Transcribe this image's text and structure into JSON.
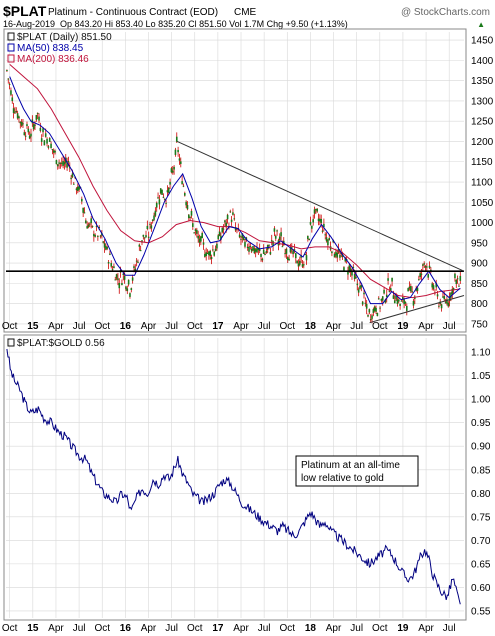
{
  "header": {
    "symbol": "$PLAT",
    "description": "Platinum - Continuous Contract (EOD)",
    "exchange": "CME",
    "date": "16-Aug-2019",
    "quote": "Op 843.20  Hi 853.40  Lo 835.20  Cl 851.50  Vol 1.7M  Chg +9.50 (+1.13%)",
    "quote_arrow": "▲",
    "brand": "@ StockCharts.com"
  },
  "colors": {
    "candle_body": "#1a7a1a",
    "candle_wick": "#cc0000",
    "ma50": "#0000aa",
    "ma200": "#c0143c",
    "ratio": "#000080",
    "trendline": "#333333",
    "support": "#000000",
    "grid": "#d8d8d8"
  },
  "chart_data": [
    {
      "type": "candlestick",
      "legend": [
        {
          "name": "$PLAT (Daily) 851.50",
          "color": "#111111"
        },
        {
          "name": "MA(50) 838.45",
          "color": "#0000aa"
        },
        {
          "name": "MA(200) 836.46",
          "color": "#c0143c"
        }
      ],
      "ylim": [
        735,
        1470
      ],
      "yticks": [
        750,
        800,
        850,
        900,
        950,
        1000,
        1050,
        1100,
        1150,
        1200,
        1250,
        1300,
        1350,
        1400,
        1450
      ],
      "xlim": [
        2014.71,
        2019.66
      ],
      "close_path": [
        [
          2014.72,
          1375
        ],
        [
          2014.78,
          1300
        ],
        [
          2014.85,
          1260
        ],
        [
          2014.92,
          1230
        ],
        [
          2014.98,
          1220
        ],
        [
          2015.05,
          1270
        ],
        [
          2015.1,
          1220
        ],
        [
          2015.18,
          1200
        ],
        [
          2015.25,
          1160
        ],
        [
          2015.32,
          1140
        ],
        [
          2015.38,
          1150
        ],
        [
          2015.45,
          1100
        ],
        [
          2015.52,
          1070
        ],
        [
          2015.58,
          1000
        ],
        [
          2015.65,
          980
        ],
        [
          2015.72,
          970
        ],
        [
          2015.78,
          940
        ],
        [
          2015.85,
          900
        ],
        [
          2015.92,
          860
        ],
        [
          2015.98,
          870
        ],
        [
          2016.05,
          840
        ],
        [
          2016.1,
          880
        ],
        [
          2016.18,
          960
        ],
        [
          2016.25,
          970
        ],
        [
          2016.32,
          1030
        ],
        [
          2016.38,
          1080
        ],
        [
          2016.45,
          1060
        ],
        [
          2016.52,
          1130
        ],
        [
          2016.56,
          1195
        ],
        [
          2016.62,
          1100
        ],
        [
          2016.68,
          1040
        ],
        [
          2016.72,
          1000
        ],
        [
          2016.78,
          960
        ],
        [
          2016.85,
          940
        ],
        [
          2016.9,
          920
        ],
        [
          2016.98,
          940
        ],
        [
          2017.05,
          980
        ],
        [
          2017.1,
          1000
        ],
        [
          2017.15,
          1020
        ],
        [
          2017.2,
          980
        ],
        [
          2017.25,
          960
        ],
        [
          2017.3,
          940
        ],
        [
          2017.35,
          950
        ],
        [
          2017.4,
          930
        ],
        [
          2017.48,
          920
        ],
        [
          2017.55,
          930
        ],
        [
          2017.62,
          970
        ],
        [
          2017.7,
          950
        ],
        [
          2017.75,
          930
        ],
        [
          2017.82,
          920
        ],
        [
          2017.88,
          900
        ],
        [
          2017.95,
          910
        ],
        [
          2018.0,
          990
        ],
        [
          2018.05,
          1020
        ],
        [
          2018.12,
          1000
        ],
        [
          2018.18,
          960
        ],
        [
          2018.25,
          940
        ],
        [
          2018.3,
          920
        ],
        [
          2018.38,
          900
        ],
        [
          2018.45,
          880
        ],
        [
          2018.5,
          850
        ],
        [
          2018.55,
          830
        ],
        [
          2018.6,
          790
        ],
        [
          2018.64,
          770
        ],
        [
          2018.7,
          790
        ],
        [
          2018.76,
          800
        ],
        [
          2018.82,
          830
        ],
        [
          2018.86,
          850
        ],
        [
          2018.92,
          820
        ],
        [
          2018.96,
          800
        ],
        [
          2019.0,
          800
        ],
        [
          2019.04,
          810
        ],
        [
          2019.08,
          830
        ],
        [
          2019.12,
          820
        ],
        [
          2019.18,
          860
        ],
        [
          2019.22,
          890
        ],
        [
          2019.24,
          910
        ],
        [
          2019.28,
          880
        ],
        [
          2019.32,
          850
        ],
        [
          2019.38,
          810
        ],
        [
          2019.42,
          800
        ],
        [
          2019.48,
          810
        ],
        [
          2019.53,
          830
        ],
        [
          2019.56,
          860
        ],
        [
          2019.6,
          845
        ],
        [
          2019.62,
          851.5
        ]
      ],
      "ma50": [
        [
          2014.75,
          1360
        ],
        [
          2014.82,
          1320
        ],
        [
          2014.9,
          1280
        ],
        [
          2014.98,
          1250
        ],
        [
          2015.08,
          1240
        ],
        [
          2015.18,
          1220
        ],
        [
          2015.3,
          1175
        ],
        [
          2015.42,
          1130
        ],
        [
          2015.55,
          1070
        ],
        [
          2015.65,
          1010
        ],
        [
          2015.78,
          960
        ],
        [
          2015.9,
          900
        ],
        [
          2016.0,
          870
        ],
        [
          2016.1,
          870
        ],
        [
          2016.2,
          920
        ],
        [
          2016.32,
          990
        ],
        [
          2016.42,
          1050
        ],
        [
          2016.52,
          1090
        ],
        [
          2016.62,
          1120
        ],
        [
          2016.72,
          1060
        ],
        [
          2016.82,
          990
        ],
        [
          2016.92,
          950
        ],
        [
          2017.02,
          955
        ],
        [
          2017.12,
          990
        ],
        [
          2017.22,
          985
        ],
        [
          2017.32,
          955
        ],
        [
          2017.45,
          935
        ],
        [
          2017.58,
          940
        ],
        [
          2017.68,
          955
        ],
        [
          2017.8,
          935
        ],
        [
          2017.92,
          915
        ],
        [
          2018.02,
          960
        ],
        [
          2018.12,
          995
        ],
        [
          2018.22,
          965
        ],
        [
          2018.35,
          920
        ],
        [
          2018.45,
          890
        ],
        [
          2018.55,
          850
        ],
        [
          2018.65,
          800
        ],
        [
          2018.78,
          800
        ],
        [
          2018.88,
          830
        ],
        [
          2018.98,
          810
        ],
        [
          2019.08,
          815
        ],
        [
          2019.18,
          850
        ],
        [
          2019.28,
          880
        ],
        [
          2019.4,
          835
        ],
        [
          2019.5,
          815
        ],
        [
          2019.62,
          838.45
        ]
      ],
      "ma200": [
        [
          2014.75,
          1390
        ],
        [
          2014.9,
          1360
        ],
        [
          2015.05,
          1330
        ],
        [
          2015.2,
          1280
        ],
        [
          2015.35,
          1220
        ],
        [
          2015.5,
          1160
        ],
        [
          2015.65,
          1090
        ],
        [
          2015.8,
          1030
        ],
        [
          2015.95,
          980
        ],
        [
          2016.1,
          955
        ],
        [
          2016.25,
          950
        ],
        [
          2016.4,
          965
        ],
        [
          2016.55,
          995
        ],
        [
          2016.7,
          1005
        ],
        [
          2016.85,
          1000
        ],
        [
          2017.0,
          990
        ],
        [
          2017.15,
          990
        ],
        [
          2017.3,
          975
        ],
        [
          2017.45,
          955
        ],
        [
          2017.6,
          950
        ],
        [
          2017.75,
          945
        ],
        [
          2017.9,
          935
        ],
        [
          2018.05,
          940
        ],
        [
          2018.2,
          940
        ],
        [
          2018.35,
          925
        ],
        [
          2018.5,
          895
        ],
        [
          2018.65,
          860
        ],
        [
          2018.8,
          840
        ],
        [
          2018.95,
          820
        ],
        [
          2019.1,
          815
        ],
        [
          2019.25,
          820
        ],
        [
          2019.4,
          830
        ],
        [
          2019.55,
          834
        ],
        [
          2019.62,
          836.46
        ]
      ],
      "upper_trendline": [
        [
          2016.56,
          1200
        ],
        [
          2019.66,
          880
        ]
      ],
      "lower_trendline": [
        [
          2018.64,
          753
        ],
        [
          2019.66,
          820
        ]
      ],
      "support_line": [
        [
          2014.71,
          880
        ],
        [
          2019.66,
          880
        ]
      ]
    },
    {
      "type": "line",
      "legend": [
        {
          "name": "$PLAT:$GOLD 0.56",
          "color": "#111111"
        }
      ],
      "ylim": [
        0.535,
        1.13
      ],
      "yticks": [
        0.55,
        0.6,
        0.65,
        0.7,
        0.75,
        0.8,
        0.85,
        0.9,
        0.95,
        1.0,
        1.05,
        1.1
      ],
      "ytick_labels": [
        "0.55",
        "0.60",
        "0.65",
        "0.70",
        "0.75",
        "0.80",
        "0.85",
        "0.90",
        "0.95",
        "1.00",
        "1.05",
        "1.10"
      ],
      "xlim": [
        2014.71,
        2019.66
      ],
      "path": [
        [
          2014.72,
          1.11
        ],
        [
          2014.76,
          1.06
        ],
        [
          2014.8,
          1.04
        ],
        [
          2014.86,
          1.02
        ],
        [
          2014.92,
          0.99
        ],
        [
          2014.98,
          0.97
        ],
        [
          2015.06,
          0.98
        ],
        [
          2015.12,
          0.96
        ],
        [
          2015.2,
          0.95
        ],
        [
          2015.28,
          0.93
        ],
        [
          2015.35,
          0.92
        ],
        [
          2015.42,
          0.9
        ],
        [
          2015.5,
          0.88
        ],
        [
          2015.58,
          0.87
        ],
        [
          2015.64,
          0.84
        ],
        [
          2015.7,
          0.82
        ],
        [
          2015.76,
          0.8
        ],
        [
          2015.84,
          0.79
        ],
        [
          2015.9,
          0.78
        ],
        [
          2015.96,
          0.8
        ],
        [
          2016.02,
          0.79
        ],
        [
          2016.06,
          0.76
        ],
        [
          2016.12,
          0.79
        ],
        [
          2016.18,
          0.81
        ],
        [
          2016.24,
          0.8
        ],
        [
          2016.3,
          0.83
        ],
        [
          2016.36,
          0.82
        ],
        [
          2016.42,
          0.84
        ],
        [
          2016.48,
          0.83
        ],
        [
          2016.54,
          0.86
        ],
        [
          2016.57,
          0.87
        ],
        [
          2016.62,
          0.84
        ],
        [
          2016.68,
          0.82
        ],
        [
          2016.72,
          0.8
        ],
        [
          2016.78,
          0.79
        ],
        [
          2016.84,
          0.78
        ],
        [
          2016.9,
          0.79
        ],
        [
          2016.96,
          0.8
        ],
        [
          2017.02,
          0.82
        ],
        [
          2017.08,
          0.83
        ],
        [
          2017.14,
          0.82
        ],
        [
          2017.2,
          0.8
        ],
        [
          2017.26,
          0.78
        ],
        [
          2017.32,
          0.77
        ],
        [
          2017.38,
          0.76
        ],
        [
          2017.44,
          0.75
        ],
        [
          2017.5,
          0.74
        ],
        [
          2017.58,
          0.73
        ],
        [
          2017.64,
          0.72
        ],
        [
          2017.7,
          0.73
        ],
        [
          2017.76,
          0.72
        ],
        [
          2017.82,
          0.71
        ],
        [
          2017.88,
          0.72
        ],
        [
          2017.94,
          0.74
        ],
        [
          2018.0,
          0.76
        ],
        [
          2018.04,
          0.75
        ],
        [
          2018.1,
          0.73
        ],
        [
          2018.16,
          0.74
        ],
        [
          2018.22,
          0.72
        ],
        [
          2018.28,
          0.71
        ],
        [
          2018.34,
          0.7
        ],
        [
          2018.4,
          0.69
        ],
        [
          2018.46,
          0.68
        ],
        [
          2018.52,
          0.67
        ],
        [
          2018.58,
          0.66
        ],
        [
          2018.64,
          0.65
        ],
        [
          2018.7,
          0.66
        ],
        [
          2018.76,
          0.67
        ],
        [
          2018.82,
          0.68
        ],
        [
          2018.88,
          0.67
        ],
        [
          2018.94,
          0.65
        ],
        [
          2019.0,
          0.63
        ],
        [
          2019.04,
          0.62
        ],
        [
          2019.08,
          0.62
        ],
        [
          2019.12,
          0.63
        ],
        [
          2019.16,
          0.65
        ],
        [
          2019.2,
          0.67
        ],
        [
          2019.24,
          0.68
        ],
        [
          2019.28,
          0.66
        ],
        [
          2019.32,
          0.63
        ],
        [
          2019.36,
          0.61
        ],
        [
          2019.42,
          0.59
        ],
        [
          2019.48,
          0.58
        ],
        [
          2019.54,
          0.62
        ],
        [
          2019.58,
          0.59
        ],
        [
          2019.62,
          0.56
        ]
      ],
      "annotation": "Platinum at an all-time low relative to gold",
      "annotation_lines": [
        "Platinum at an all-time",
        "low relative to gold"
      ]
    }
  ],
  "x_axis_labels": [
    {
      "label": "Oct",
      "x": 2014.75,
      "bold": false
    },
    {
      "label": "15",
      "x": 2015.0,
      "bold": true
    },
    {
      "label": "Apr",
      "x": 2015.25,
      "bold": false
    },
    {
      "label": "Jul",
      "x": 2015.5,
      "bold": false
    },
    {
      "label": "Oct",
      "x": 2015.75,
      "bold": false
    },
    {
      "label": "16",
      "x": 2016.0,
      "bold": true
    },
    {
      "label": "Apr",
      "x": 2016.25,
      "bold": false
    },
    {
      "label": "Jul",
      "x": 2016.5,
      "bold": false
    },
    {
      "label": "Oct",
      "x": 2016.75,
      "bold": false
    },
    {
      "label": "17",
      "x": 2017.0,
      "bold": true
    },
    {
      "label": "Apr",
      "x": 2017.25,
      "bold": false
    },
    {
      "label": "Jul",
      "x": 2017.5,
      "bold": false
    },
    {
      "label": "Oct",
      "x": 2017.75,
      "bold": false
    },
    {
      "label": "18",
      "x": 2018.0,
      "bold": true
    },
    {
      "label": "Apr",
      "x": 2018.25,
      "bold": false
    },
    {
      "label": "Jul",
      "x": 2018.5,
      "bold": false
    },
    {
      "label": "Oct",
      "x": 2018.75,
      "bold": false
    },
    {
      "label": "19",
      "x": 2019.0,
      "bold": true
    },
    {
      "label": "Apr",
      "x": 2019.25,
      "bold": false
    },
    {
      "label": "Jul",
      "x": 2019.5,
      "bold": false
    }
  ]
}
